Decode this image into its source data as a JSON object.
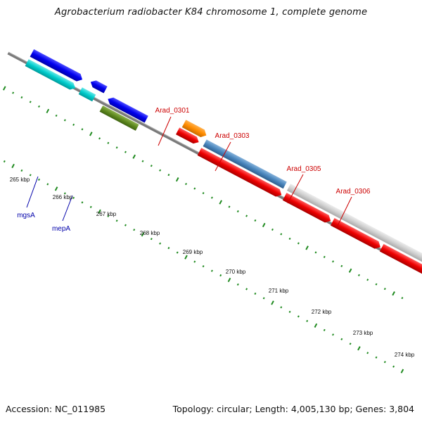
{
  "title": "Agrobacterium radiobacter K84 chromosome 1, complete genome",
  "footer": {
    "accession": "Accession: NC_011985",
    "topology": "Topology: circular; Length: 4,005,130 bp; Genes: 3,804"
  },
  "colors": {
    "backbone": "#7a7a7a",
    "tick_major": "#1f8a1f",
    "tick_minor": "#1f8a1f",
    "locus_label": "#cc0000",
    "gene_label": "#0000aa"
  },
  "scale_labels": [
    "265 kbp",
    "266 kbp",
    "267 kbp",
    "268 kbp",
    "269 kbp",
    "270 kbp",
    "271 kbp",
    "272 kbp",
    "273 kbp",
    "274 kbp"
  ],
  "features": [
    {
      "name": "blue-gene-1",
      "color": "#0000ee",
      "track": "outer-plus",
      "strand": "+"
    },
    {
      "name": "cyan-gene-1",
      "color": "#00cccc",
      "track": "outer-minus",
      "strand": "+"
    },
    {
      "name": "blue-gene-2",
      "color": "#0000ee",
      "track": "outer-minus",
      "strand": "-"
    },
    {
      "name": "blue-gene-3",
      "color": "#0000ee",
      "track": "outer-minus",
      "strand": "-"
    },
    {
      "name": "mepA-gene",
      "color": "#5f8a1f",
      "track": "inner",
      "strand": "none"
    },
    {
      "name": "Arad_0301-gene",
      "color": "#ff8c00",
      "track": "plus",
      "strand": "+"
    },
    {
      "name": "red-gene-1",
      "color": "#ee0000",
      "track": "minus",
      "strand": "+"
    },
    {
      "name": "Arad_0303-gene",
      "color": "#4a86bd",
      "track": "plus",
      "strand": "none"
    },
    {
      "name": "red-gene-2",
      "color": "#ee0000",
      "track": "minus",
      "strand": "+"
    },
    {
      "name": "Arad_0305-gene",
      "color": "#c8c8c8",
      "track": "plus",
      "strand": "none"
    },
    {
      "name": "red-gene-3",
      "color": "#ee0000",
      "track": "minus",
      "strand": "+"
    },
    {
      "name": "red-gene-4",
      "color": "#ee0000",
      "track": "minus",
      "strand": "+"
    },
    {
      "name": "red-gene-5",
      "color": "#ee0000",
      "track": "minus",
      "strand": "+"
    },
    {
      "name": "red-gene-6",
      "color": "#ee0000",
      "track": "minus",
      "strand": "+"
    }
  ],
  "locus_labels": [
    "Arad_0301",
    "Arad_0303",
    "Arad_0305",
    "Arad_0306"
  ],
  "gene_labels": [
    "mgsA",
    "mepA"
  ]
}
